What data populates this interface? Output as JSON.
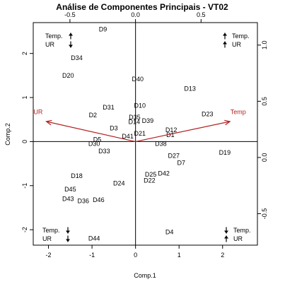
{
  "chart_data": {
    "type": "scatter",
    "title": "Análise de Componentes Principais - VT02",
    "xlabel": "Comp.1",
    "ylabel": "Comp.2",
    "xlim": [
      -2.35,
      2.8
    ],
    "ylim": [
      -2.35,
      2.7
    ],
    "top_xlim": [
      -0.78,
      0.93
    ],
    "right_ylim": [
      -0.78,
      1.2
    ],
    "x_ticks": [
      -2,
      -1,
      0,
      1,
      2
    ],
    "y_ticks": [
      -2,
      -1,
      0,
      1,
      2
    ],
    "top_ticks": [
      -0.5,
      0.0,
      0.5
    ],
    "right_ticks": [
      -0.5,
      0.0,
      0.5,
      1.0
    ],
    "x_tick_labels": [
      "-2",
      "-1",
      "0",
      "1",
      "2"
    ],
    "y_tick_labels": [
      "-2",
      "-1",
      "0",
      "1",
      "2"
    ],
    "top_tick_labels": [
      "-0.5",
      "0.0",
      "0.5"
    ],
    "right_tick_labels": [
      "-0.5",
      "0.0",
      "0.5",
      "1.0"
    ],
    "grid": false,
    "points": [
      {
        "label": "D9",
        "x": -0.75,
        "y": 2.55
      },
      {
        "label": "D34",
        "x": -1.35,
        "y": 1.9
      },
      {
        "label": "D20",
        "x": -1.55,
        "y": 1.5
      },
      {
        "label": "D40",
        "x": 0.05,
        "y": 1.42
      },
      {
        "label": "D13",
        "x": 1.25,
        "y": 1.2
      },
      {
        "label": "D10",
        "x": 0.1,
        "y": 0.82
      },
      {
        "label": "D31",
        "x": -0.62,
        "y": 0.78
      },
      {
        "label": "D23",
        "x": 1.65,
        "y": 0.62
      },
      {
        "label": "D2",
        "x": -0.98,
        "y": 0.6
      },
      {
        "label": "D35",
        "x": -0.02,
        "y": 0.55
      },
      {
        "label": "D14",
        "x": -0.03,
        "y": 0.45
      },
      {
        "label": "D39",
        "x": 0.28,
        "y": 0.47
      },
      {
        "label": "D3",
        "x": -0.5,
        "y": 0.3
      },
      {
        "label": "D12",
        "x": 0.82,
        "y": 0.26
      },
      {
        "label": "D21",
        "x": 0.1,
        "y": 0.18
      },
      {
        "label": "D41",
        "x": -0.18,
        "y": 0.12
      },
      {
        "label": "D1",
        "x": 0.8,
        "y": 0.15
      },
      {
        "label": "D5",
        "x": -0.88,
        "y": 0.05
      },
      {
        "label": "D30",
        "x": -0.95,
        "y": -0.05
      },
      {
        "label": "D38",
        "x": 0.58,
        "y": -0.05
      },
      {
        "label": "D33",
        "x": -0.72,
        "y": -0.22
      },
      {
        "label": "D19",
        "x": 2.05,
        "y": -0.25
      },
      {
        "label": "D27",
        "x": 0.88,
        "y": -0.32
      },
      {
        "label": "D7",
        "x": 1.05,
        "y": -0.48
      },
      {
        "label": "D42",
        "x": 0.65,
        "y": -0.72
      },
      {
        "label": "D25",
        "x": 0.35,
        "y": -0.75
      },
      {
        "label": "D18",
        "x": -1.35,
        "y": -0.78
      },
      {
        "label": "D22",
        "x": 0.32,
        "y": -0.88
      },
      {
        "label": "D24",
        "x": -0.38,
        "y": -0.95
      },
      {
        "label": "D45",
        "x": -1.5,
        "y": -1.08
      },
      {
        "label": "D43",
        "x": -1.55,
        "y": -1.3
      },
      {
        "label": "D36",
        "x": -1.2,
        "y": -1.35
      },
      {
        "label": "D46",
        "x": -0.85,
        "y": -1.32
      },
      {
        "label": "D4",
        "x": 0.78,
        "y": -2.05
      },
      {
        "label": "D44",
        "x": -0.95,
        "y": -2.2
      }
    ],
    "loadings": [
      {
        "label": "UR",
        "x": -0.68,
        "y": 0.32
      },
      {
        "label": "Temp",
        "x": 0.72,
        "y": 0.32
      }
    ],
    "loading_color": "#b22222",
    "corner_annotations": [
      {
        "corner": "top-left",
        "lines": [
          "Temp.",
          "UR"
        ],
        "arrows": [
          "up",
          "down"
        ]
      },
      {
        "corner": "top-right",
        "lines": [
          "Temp.",
          "UR"
        ],
        "arrows": [
          "up",
          "up"
        ]
      },
      {
        "corner": "bottom-left",
        "lines": [
          "Temp.",
          "UR"
        ],
        "arrows": [
          "down",
          "down"
        ]
      },
      {
        "corner": "bottom-right",
        "lines": [
          "Temp.",
          "UR"
        ],
        "arrows": [
          "down",
          "up"
        ]
      }
    ]
  }
}
